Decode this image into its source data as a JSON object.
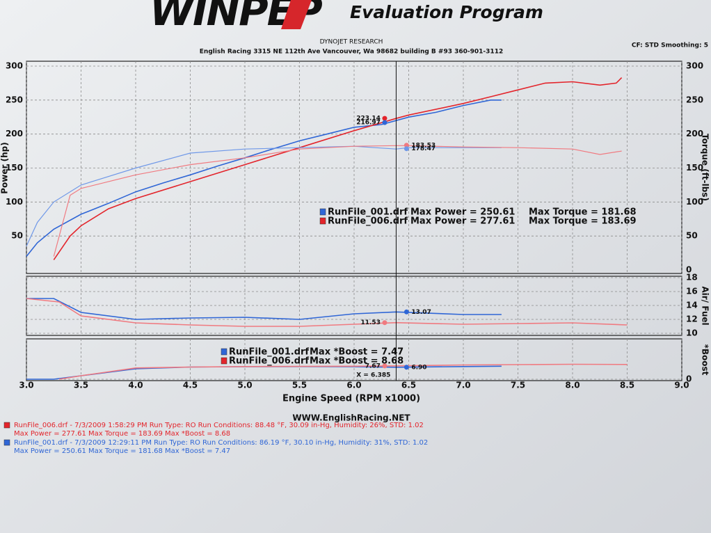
{
  "header": {
    "logo": "WINPEP",
    "program": "Evaluation Program",
    "company": "DYNOJET RESEARCH",
    "address": "English Racing 3315 NE 112th Ave Vancouver, Wa 98682 building B #93 360-901-3112",
    "settings": "CF: STD  Smoothing: 5"
  },
  "chart_data": [
    {
      "type": "line",
      "ylabel": "Power (hp)",
      "y2label": "Torque (ft-lbs)",
      "xlim": [
        3,
        9
      ],
      "ylim": [
        0,
        300
      ],
      "y2lim": [
        0,
        300
      ],
      "yticks": [
        50,
        100,
        150,
        200,
        250,
        300
      ],
      "y2ticks": [
        0,
        50,
        100,
        150,
        200,
        250,
        300
      ],
      "grid": true,
      "series": [
        {
          "name": "RunFile_001.drf",
          "color": "#2f66d6",
          "x": [
            3.0,
            3.1,
            3.25,
            3.5,
            3.75,
            4.0,
            4.25,
            4.5,
            4.75,
            5.0,
            5.25,
            5.5,
            5.75,
            6.0,
            6.25,
            6.5,
            6.75,
            7.0,
            7.25,
            7.35
          ],
          "values": [
            20,
            40,
            60,
            82,
            98,
            115,
            128,
            140,
            153,
            165,
            178,
            190,
            200,
            210,
            214,
            225,
            232,
            242,
            250,
            250
          ]
        },
        {
          "name": "RunFile_006.drf",
          "color": "#e3242b",
          "x": [
            3.25,
            3.4,
            3.5,
            3.75,
            4.0,
            4.5,
            5.0,
            5.5,
            6.0,
            6.385,
            6.5,
            7.0,
            7.25,
            7.5,
            7.75,
            8.0,
            8.25,
            8.4,
            8.45
          ],
          "values": [
            15,
            50,
            65,
            90,
            105,
            130,
            155,
            180,
            205,
            223,
            228,
            245,
            255,
            265,
            275,
            277,
            272,
            275,
            283
          ]
        },
        {
          "name": "RunFile_001.drf",
          "color": "#6f98e8",
          "axis": "y2",
          "x": [
            3.0,
            3.1,
            3.25,
            3.5,
            4.0,
            4.5,
            5.0,
            5.5,
            6.0,
            6.385,
            6.5,
            7.0,
            7.35
          ],
          "values": [
            35,
            70,
            100,
            125,
            150,
            172,
            178,
            180,
            182,
            178,
            180,
            180,
            180
          ]
        },
        {
          "name": "RunFile_006.drf",
          "color": "#f07a80",
          "axis": "y2",
          "x": [
            3.25,
            3.4,
            3.5,
            4.0,
            4.5,
            5.0,
            5.5,
            6.0,
            6.385,
            6.5,
            7.0,
            7.5,
            8.0,
            8.25,
            8.45
          ],
          "values": [
            20,
            110,
            120,
            140,
            155,
            165,
            178,
            182,
            183,
            183,
            181,
            180,
            178,
            170,
            175
          ]
        }
      ],
      "markers": [
        {
          "series": 1,
          "x": 6.28,
          "value": 223.14
        },
        {
          "series": 0,
          "x": 6.28,
          "value": 216.97
        },
        {
          "series": 3,
          "x": 6.48,
          "value": 183.53
        },
        {
          "series": 2,
          "x": 6.48,
          "value": 178.47
        }
      ],
      "legend": [
        {
          "name": "RunFile_001.drf",
          "color": "#2f66d6",
          "fields": [
            "Max Power = 250.61",
            "Max Torque = 181.68"
          ]
        },
        {
          "name": "RunFile_006.drf",
          "color": "#e3242b",
          "fields": [
            "Max Power = 277.61",
            "Max Torque = 183.69"
          ]
        }
      ]
    },
    {
      "type": "line",
      "y2label": "Air/ Fuel",
      "xlim": [
        3,
        9
      ],
      "y2lim": [
        10,
        18
      ],
      "y2ticks": [
        10,
        12,
        14,
        16,
        18
      ],
      "grid": true,
      "series": [
        {
          "name": "RunFile_001.drf",
          "color": "#2f66d6",
          "axis": "y2",
          "x": [
            3.0,
            3.25,
            3.5,
            4.0,
            4.5,
            5.0,
            5.5,
            6.0,
            6.385,
            7.0,
            7.35
          ],
          "values": [
            15,
            15,
            13,
            12,
            12.2,
            12.3,
            12,
            12.8,
            13.07,
            12.7,
            12.7
          ]
        },
        {
          "name": "RunFile_006.drf",
          "color": "#f07a80",
          "axis": "y2",
          "x": [
            3.0,
            3.3,
            3.5,
            4.0,
            4.5,
            5.0,
            5.5,
            6.0,
            6.385,
            7.0,
            7.5,
            8.0,
            8.5
          ],
          "values": [
            15,
            14.5,
            12.5,
            11.5,
            11.2,
            11,
            11,
            11.3,
            11.53,
            11.3,
            11.4,
            11.5,
            11.2
          ]
        }
      ],
      "markers": [
        {
          "series": 0,
          "x": 6.48,
          "value": 13.07
        },
        {
          "series": 1,
          "x": 6.28,
          "value": 11.53
        }
      ]
    },
    {
      "type": "line",
      "y2label": "*Boost",
      "xlabel": "Engine Speed (RPM x1000)",
      "xlim": [
        3,
        9
      ],
      "y2lim": [
        0,
        22
      ],
      "y2ticks": [
        0
      ],
      "grid": true,
      "xticks": [
        {
          "value": 3,
          "label": "3.0"
        },
        {
          "value": 3.5,
          "label": "3.5"
        },
        {
          "value": 4,
          "label": "4.0"
        },
        {
          "value": 4.5,
          "label": "4.5"
        },
        {
          "value": 5,
          "label": "5.0"
        },
        {
          "value": 5.5,
          "label": "5.5"
        },
        {
          "value": 6,
          "label": "6.0"
        },
        {
          "value": 6.5,
          "label": "6.5"
        },
        {
          "value": 7,
          "label": "7.0"
        },
        {
          "value": 7.5,
          "label": "7.5"
        },
        {
          "value": 8,
          "label": "8.0"
        },
        {
          "value": 8.5,
          "label": "8.5"
        },
        {
          "value": 9,
          "label": "9.0"
        }
      ],
      "cursor": {
        "value": 6.385,
        "label": "X = 6.385"
      },
      "series": [
        {
          "name": "RunFile_001.drf",
          "color": "#2f66d6",
          "axis": "y2",
          "x": [
            3.0,
            3.25,
            3.5,
            4.0,
            4.5,
            5.0,
            5.5,
            6.0,
            6.385,
            7.0,
            7.35
          ],
          "values": [
            0,
            0,
            2,
            6,
            7,
            7.2,
            7.3,
            7.2,
            6.9,
            7.3,
            7.47
          ]
        },
        {
          "name": "RunFile_006.drf",
          "color": "#f07a80",
          "axis": "y2",
          "x": [
            3.3,
            3.5,
            4.0,
            4.5,
            5.0,
            6.0,
            6.385,
            7.0,
            7.5,
            8.0,
            8.5
          ],
          "values": [
            0,
            2,
            6.5,
            7,
            7.3,
            7.5,
            7.67,
            8.2,
            8.4,
            8.6,
            8.5
          ]
        }
      ],
      "markers": [
        {
          "series": 1,
          "x": 6.28,
          "value": 7.67
        },
        {
          "series": 0,
          "x": 6.48,
          "value": {
            "value": 6.9,
            "label": "6.90"
          }
        }
      ],
      "legend": [
        {
          "name": "RunFile_001.drf",
          "color": "#2f66d6",
          "fields": [
            "Max *Boost = 7.47"
          ]
        },
        {
          "name": "RunFile_006.drf",
          "color": "#e3242b",
          "fields": [
            "Max *Boost = 8.68"
          ]
        }
      ]
    }
  ],
  "footer": {
    "website": "WWW.EnglishRacing.NET",
    "runs": [
      {
        "color": "#e3242b",
        "line1": "RunFile_006.drf - 7/3/2009 1:58:29 PM  Run Type: RO  Run Conditions: 88.48 °F, 30.09 in-Hg,  Humidity:  26%, STD: 1.02",
        "line2": "Max Power = 277.61  Max Torque = 183.69  Max *Boost = 8.68"
      },
      {
        "color": "#2f66d6",
        "line1": "RunFile_001.drf - 7/3/2009 12:29:11 PM  Run Type: RO  Run Conditions: 86.19 °F, 30.10 in-Hg,  Humidity:  31%, STD: 1.02",
        "line2": "Max Power = 250.61  Max Torque = 181.68  Max *Boost = 7.47"
      }
    ]
  }
}
